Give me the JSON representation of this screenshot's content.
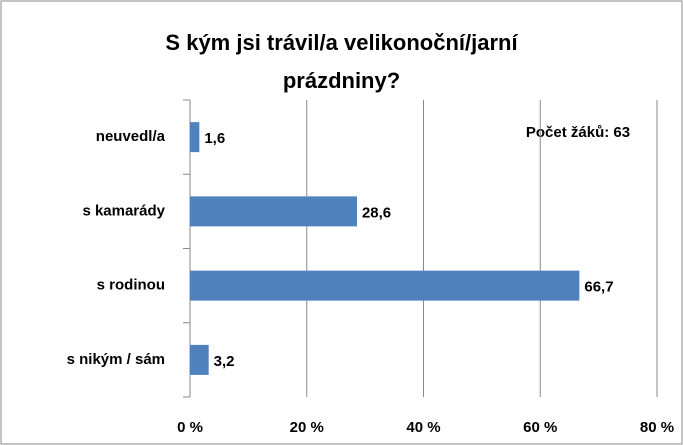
{
  "chart_data": {
    "type": "bar",
    "orientation": "horizontal",
    "title": "S kým jsi trávil/a velikonoční/jarní prázdniny?",
    "annotation": "Počet žáků: 63",
    "categories": [
      "neuvedl/a",
      "s kamarády",
      "s rodinou",
      "s nikým / sám"
    ],
    "values": [
      1.6,
      28.6,
      66.7,
      3.2
    ],
    "value_labels": [
      "1,6",
      "28,6",
      "66,7",
      "3,2"
    ],
    "color": "#4f81bd",
    "xlim": [
      0,
      80
    ],
    "xticks": [
      {
        "value": 0,
        "label": "0 %"
      },
      {
        "value": 20,
        "label": "20 %"
      },
      {
        "value": 40,
        "label": "40 %"
      },
      {
        "value": 60,
        "label": "60 %"
      },
      {
        "value": 80,
        "label": "80 %"
      }
    ],
    "grid": true
  }
}
